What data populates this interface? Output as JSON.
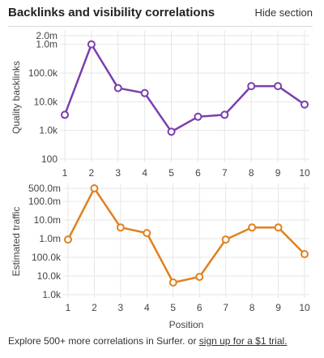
{
  "header": {
    "title": "Backlinks and visibility correlations",
    "hide_label": "Hide section"
  },
  "colors": {
    "backlinks_line": "#7a3fae",
    "traffic_line": "#e0801f",
    "grid": "#e6e6e6",
    "axis_text": "#444444"
  },
  "chart_data": [
    {
      "type": "line",
      "ylabel": "Quality backlinks",
      "xlabel": "",
      "y_scale": "log",
      "ylim": [
        100,
        2000000
      ],
      "y_ticks": [
        100,
        1000,
        10000,
        100000,
        1000000,
        2000000
      ],
      "y_tick_labels": [
        "100",
        "1.0k",
        "10.0k",
        "100.0k",
        "1.0m",
        "2.0m"
      ],
      "x": [
        1,
        2,
        3,
        4,
        5,
        6,
        7,
        8,
        9,
        10
      ],
      "x_tick_labels": [
        "1",
        "2",
        "3",
        "4",
        "5",
        "6",
        "7",
        "8",
        "9",
        "10"
      ],
      "values": [
        3500,
        1000000,
        30000,
        20000,
        900,
        3000,
        3500,
        35000,
        35000,
        8000
      ],
      "grid": true
    },
    {
      "type": "line",
      "ylabel": "Estimated traffic",
      "xlabel": "Position",
      "y_scale": "log",
      "ylim": [
        1000,
        500000000
      ],
      "y_ticks": [
        1000,
        10000,
        100000,
        1000000,
        10000000,
        100000000,
        500000000
      ],
      "y_tick_labels": [
        "1.0k",
        "10.0k",
        "100.0k",
        "1.0m",
        "10.0m",
        "100.0m",
        "500.0m"
      ],
      "x": [
        1,
        2,
        3,
        4,
        5,
        6,
        7,
        8,
        9,
        10
      ],
      "x_tick_labels": [
        "1",
        "2",
        "3",
        "4",
        "5",
        "6",
        "7",
        "8",
        "9",
        "10"
      ],
      "values": [
        900000,
        500000000,
        4000000,
        2000000,
        4500,
        9000,
        900000,
        4000000,
        4000000,
        150000
      ],
      "grid": true
    }
  ],
  "footer": {
    "text": "Explore 500+ more correlations in Surfer. or ",
    "link_label": "sign up for a $1 trial."
  }
}
